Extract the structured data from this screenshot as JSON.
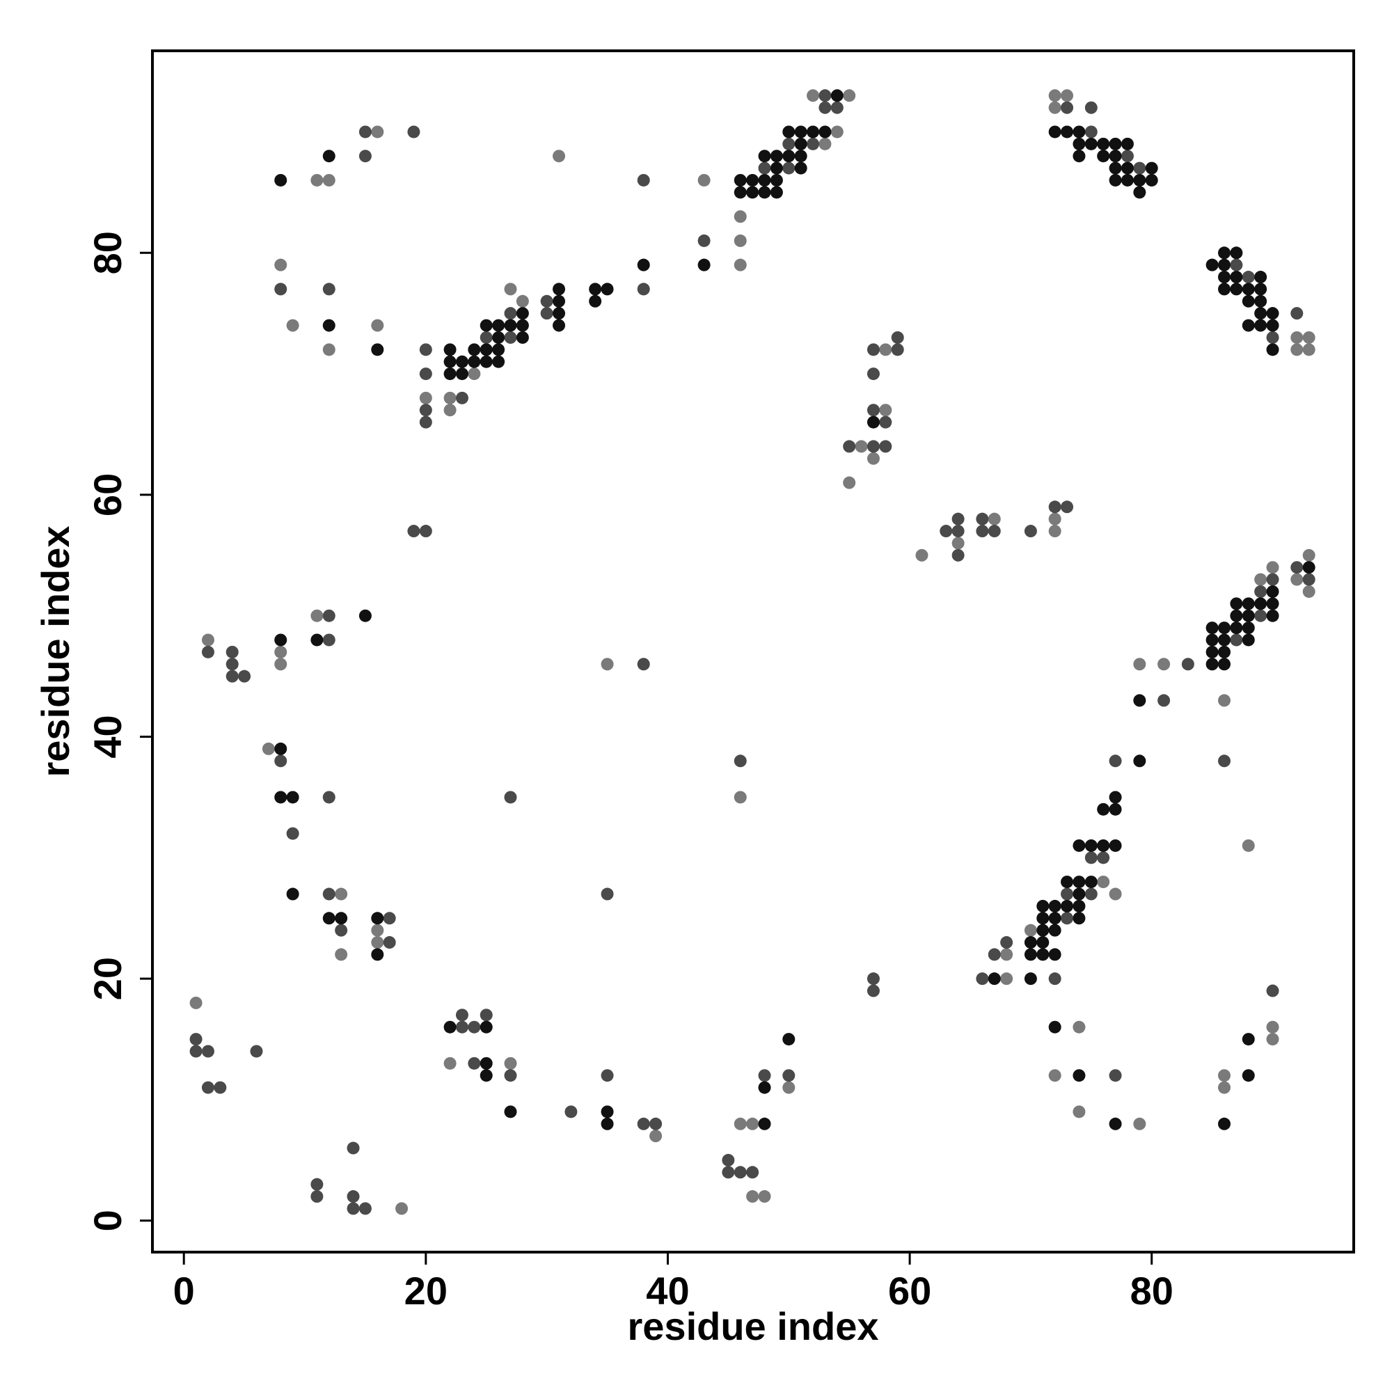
{
  "chart_data": {
    "type": "scatter",
    "xlabel": "residue index",
    "ylabel": "residue index",
    "xlim": [
      -2.6,
      96.7
    ],
    "ylim": [
      -2.6,
      96.7
    ],
    "xticks": [
      0,
      20,
      40,
      60,
      80
    ],
    "yticks": [
      0,
      20,
      40,
      60,
      80
    ],
    "series": [
      {
        "color": "#7a7a7a",
        "x": [
          1,
          18,
          22,
          27,
          39,
          47,
          48,
          46,
          47,
          50,
          68,
          68,
          70,
          76,
          77,
          79,
          81,
          72,
          74,
          74,
          79,
          86,
          86,
          90,
          90,
          86,
          88,
          89,
          90,
          92,
          93,
          93,
          61,
          64,
          67,
          72,
          72,
          55,
          56,
          57,
          58,
          58,
          7,
          13,
          13,
          16,
          16,
          2,
          8,
          8,
          11,
          35,
          46,
          11,
          12,
          16,
          8,
          9,
          12,
          16,
          31,
          43,
          20,
          22,
          22,
          24,
          27,
          28,
          46,
          46,
          46,
          53,
          52,
          54,
          55,
          72,
          72,
          73,
          92,
          92,
          93,
          93
        ],
        "values": [
          18,
          1,
          13,
          13,
          7,
          2,
          2,
          8,
          8,
          11,
          20,
          22,
          24,
          28,
          27,
          46,
          46,
          12,
          16,
          9,
          8,
          12,
          11,
          16,
          15,
          43,
          31,
          53,
          54,
          53,
          55,
          52,
          55,
          56,
          58,
          57,
          58,
          61,
          64,
          63,
          67,
          72,
          39,
          27,
          22,
          24,
          23,
          48,
          47,
          46,
          50,
          46,
          35,
          86,
          86,
          90,
          79,
          74,
          72,
          74,
          88,
          86,
          68,
          68,
          67,
          70,
          77,
          76,
          79,
          81,
          83,
          89,
          93,
          90,
          93,
          93,
          92,
          93,
          73,
          72,
          73,
          72
        ]
      },
      {
        "color": "#4a4a4a",
        "x": [
          1,
          1,
          2,
          2,
          3,
          6,
          11,
          11,
          14,
          14,
          14,
          15,
          23,
          23,
          24,
          25,
          24,
          27,
          32,
          35,
          38,
          39,
          45,
          45,
          46,
          47,
          48,
          50,
          57,
          57,
          66,
          67,
          68,
          72,
          73,
          73,
          75,
          75,
          76,
          77,
          81,
          83,
          77,
          90,
          86,
          87,
          89,
          89,
          90,
          92,
          93,
          63,
          64,
          64,
          64,
          66,
          66,
          67,
          70,
          72,
          73,
          55,
          57,
          58,
          57,
          58,
          57,
          57,
          59,
          59,
          8,
          9,
          12,
          12,
          13,
          17,
          17,
          27,
          35,
          2,
          4,
          4,
          4,
          5,
          12,
          12,
          38,
          46,
          19,
          20,
          15,
          15,
          19,
          8,
          12,
          38,
          20,
          20,
          20,
          20,
          23,
          25,
          27,
          27,
          30,
          30,
          38,
          43,
          48,
          50,
          50,
          52,
          53,
          53,
          54,
          73,
          75,
          75,
          78,
          79,
          87,
          88,
          90,
          92
        ],
        "values": [
          15,
          14,
          14,
          11,
          11,
          14,
          3,
          2,
          6,
          2,
          1,
          1,
          17,
          16,
          16,
          17,
          13,
          12,
          9,
          12,
          8,
          8,
          5,
          4,
          4,
          4,
          12,
          12,
          20,
          19,
          20,
          22,
          23,
          20,
          25,
          27,
          27,
          30,
          30,
          38,
          43,
          46,
          12,
          19,
          38,
          48,
          50,
          52,
          53,
          54,
          53,
          57,
          57,
          58,
          55,
          58,
          57,
          57,
          57,
          59,
          59,
          64,
          64,
          64,
          67,
          66,
          70,
          72,
          72,
          73,
          38,
          32,
          35,
          27,
          24,
          25,
          23,
          35,
          27,
          47,
          47,
          46,
          45,
          45,
          50,
          48,
          46,
          38,
          57,
          57,
          88,
          90,
          90,
          77,
          77,
          86,
          72,
          70,
          67,
          66,
          68,
          73,
          73,
          75,
          75,
          76,
          77,
          81,
          87,
          87,
          89,
          89,
          92,
          93,
          92,
          92,
          92,
          90,
          88,
          87,
          79,
          78,
          73,
          75
        ]
      },
      {
        "color": "#111111",
        "x": [
          22,
          25,
          25,
          25,
          27,
          35,
          35,
          48,
          48,
          50,
          67,
          70,
          70,
          70,
          71,
          71,
          71,
          71,
          71,
          72,
          72,
          72,
          72,
          73,
          73,
          74,
          74,
          74,
          74,
          75,
          74,
          75,
          76,
          77,
          76,
          77,
          77,
          79,
          79,
          72,
          74,
          77,
          86,
          88,
          88,
          85,
          85,
          85,
          85,
          86,
          86,
          86,
          86,
          87,
          87,
          87,
          88,
          88,
          88,
          88,
          89,
          90,
          90,
          90,
          93,
          57,
          8,
          8,
          9,
          9,
          12,
          13,
          16,
          16,
          8,
          11,
          15,
          8,
          12,
          12,
          16,
          22,
          22,
          22,
          23,
          23,
          24,
          24,
          25,
          25,
          25,
          26,
          26,
          26,
          26,
          27,
          28,
          28,
          28,
          31,
          31,
          31,
          31,
          34,
          34,
          35,
          38,
          43,
          46,
          46,
          47,
          47,
          48,
          48,
          48,
          49,
          49,
          49,
          49,
          50,
          50,
          51,
          51,
          51,
          51,
          52,
          53,
          54,
          72,
          73,
          74,
          74,
          74,
          75,
          76,
          76,
          77,
          77,
          77,
          77,
          78,
          78,
          78,
          79,
          79,
          80,
          80,
          85,
          86,
          86,
          86,
          86,
          87,
          87,
          87,
          88,
          88,
          88,
          89,
          89,
          89,
          89,
          89,
          90,
          90,
          90
        ],
        "values": [
          16,
          16,
          13,
          12,
          9,
          9,
          8,
          8,
          11,
          15,
          20,
          20,
          22,
          23,
          22,
          23,
          24,
          25,
          26,
          22,
          24,
          25,
          26,
          26,
          28,
          25,
          26,
          27,
          28,
          28,
          31,
          31,
          31,
          31,
          34,
          34,
          35,
          38,
          43,
          16,
          12,
          8,
          8,
          15,
          12,
          46,
          47,
          48,
          49,
          46,
          47,
          48,
          49,
          49,
          50,
          51,
          48,
          49,
          50,
          51,
          51,
          50,
          51,
          52,
          54,
          66,
          39,
          35,
          35,
          27,
          25,
          25,
          25,
          22,
          48,
          48,
          50,
          86,
          88,
          74,
          72,
          72,
          71,
          70,
          71,
          70,
          71,
          72,
          71,
          72,
          74,
          71,
          72,
          73,
          74,
          74,
          73,
          74,
          75,
          74,
          75,
          76,
          77,
          76,
          77,
          77,
          79,
          79,
          85,
          86,
          85,
          86,
          85,
          86,
          88,
          85,
          86,
          87,
          88,
          88,
          90,
          87,
          88,
          89,
          90,
          90,
          90,
          93,
          90,
          90,
          90,
          89,
          88,
          89,
          89,
          88,
          89,
          88,
          87,
          86,
          89,
          87,
          86,
          86,
          85,
          87,
          86,
          79,
          80,
          79,
          78,
          77,
          80,
          78,
          77,
          77,
          76,
          74,
          78,
          77,
          76,
          75,
          74,
          75,
          74,
          72
        ]
      }
    ]
  }
}
